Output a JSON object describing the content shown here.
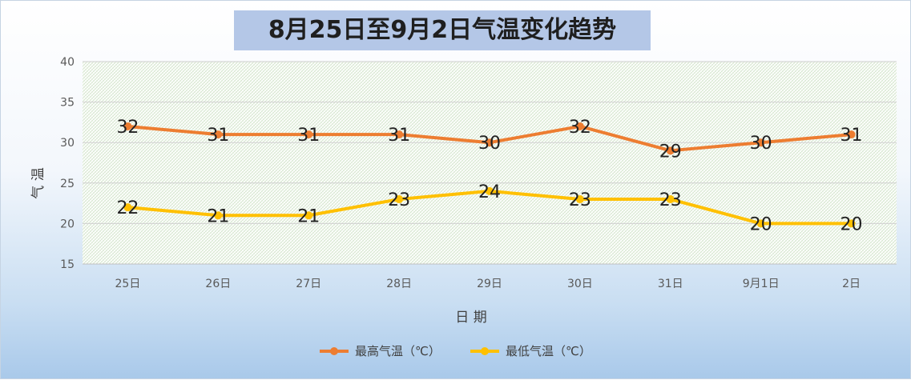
{
  "chart_data": {
    "type": "line",
    "title": "8月25日至9月2日气温变化趋势",
    "xlabel": "日 期",
    "ylabel": "气 温",
    "categories": [
      "25日",
      "26日",
      "27日",
      "28日",
      "29日",
      "30日",
      "31日",
      "9月1日",
      "2日"
    ],
    "ylim": [
      15,
      40
    ],
    "yticks": [
      15,
      20,
      25,
      30,
      35,
      40
    ],
    "grid": true,
    "legend_position": "bottom",
    "series": [
      {
        "name": "最高气温（℃）",
        "color": "#ed7d31",
        "values": [
          32,
          31,
          31,
          31,
          30,
          32,
          29,
          30,
          31
        ]
      },
      {
        "name": "最低气温（℃）",
        "color": "#ffc000",
        "values": [
          22,
          21,
          21,
          23,
          24,
          23,
          23,
          20,
          20
        ]
      }
    ]
  }
}
